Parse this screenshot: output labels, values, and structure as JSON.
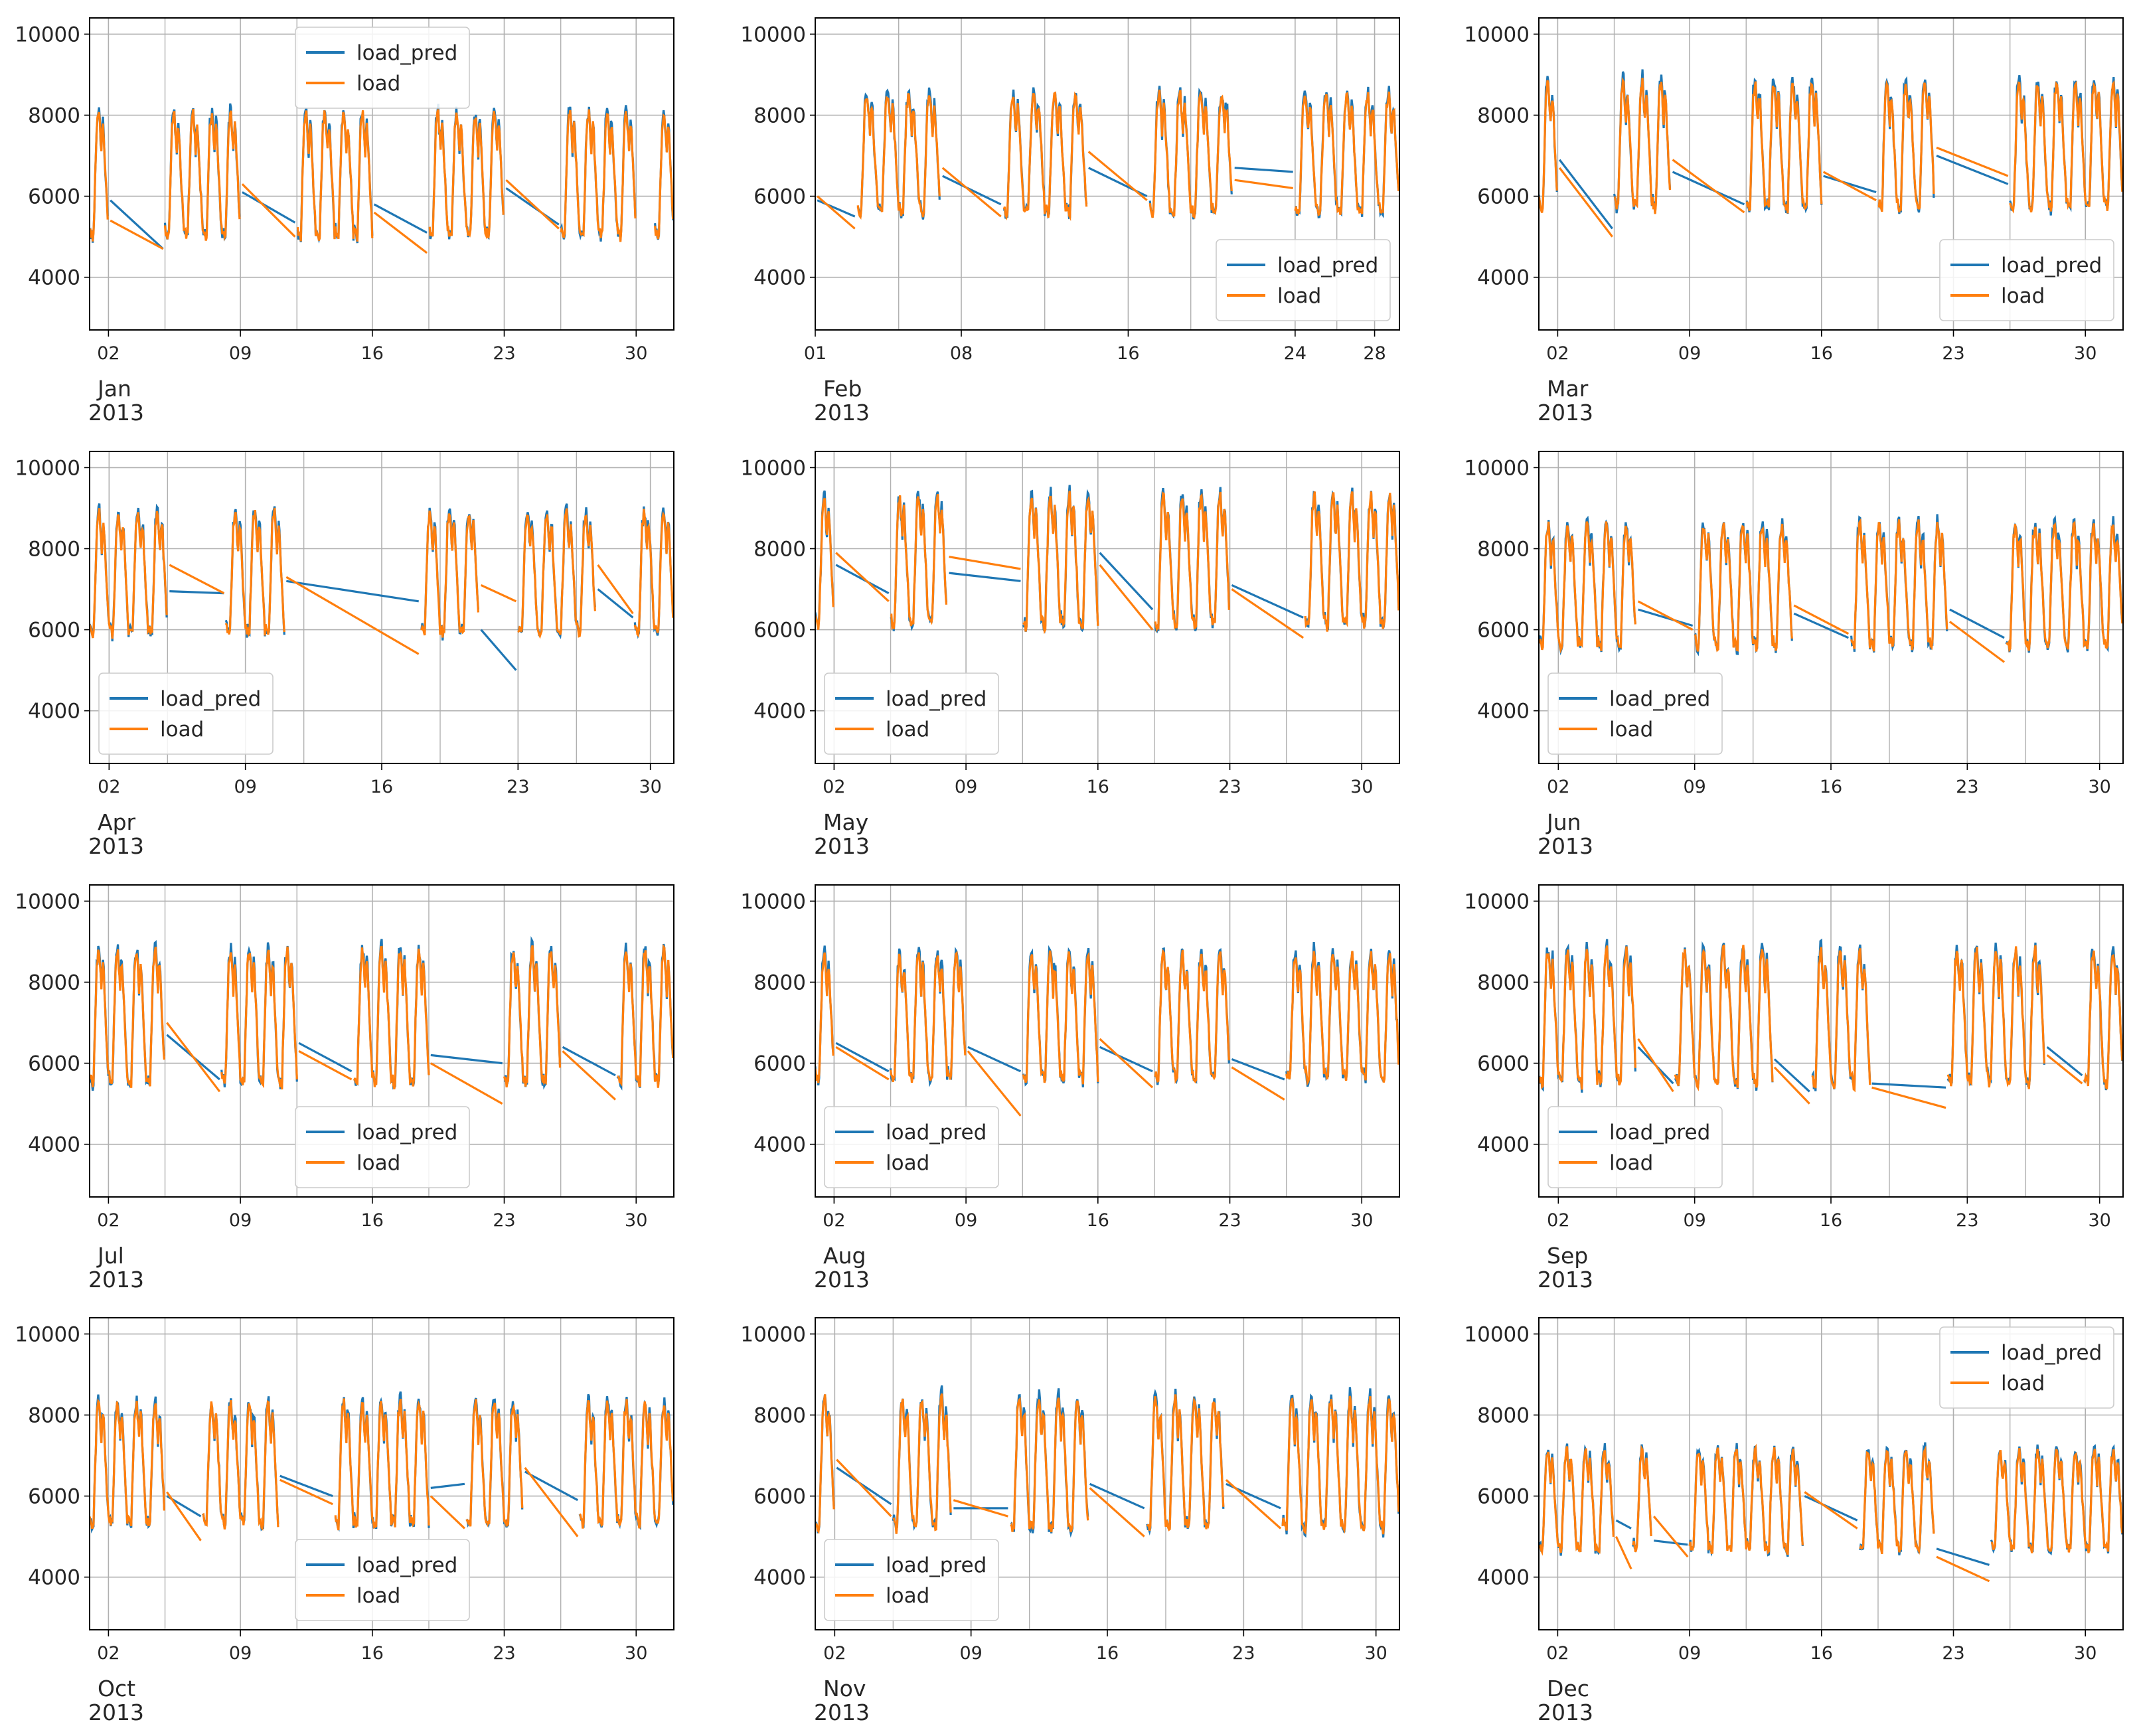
{
  "series_names": [
    "load_pred",
    "load"
  ],
  "colors": {
    "load_pred": "#1f77b4",
    "load": "#ff7f0e",
    "grid": "#b0b0b0",
    "axis": "#000000"
  },
  "chart_data": {
    "type": "line",
    "layout": "4x3 grid of subplots, shared y axis",
    "ylim": [
      2700,
      10400
    ],
    "yticks": [
      4000,
      6000,
      8000,
      10000
    ],
    "grid": true,
    "panels": [
      {
        "month": "Jan",
        "year": "2013",
        "days": 31,
        "day_ticks": [
          "02",
          "09",
          "16",
          "23",
          "30"
        ],
        "legend": "top-center",
        "gaps": [
          [
            2,
            5
          ],
          [
            9,
            12
          ],
          [
            16,
            19
          ],
          [
            23,
            26
          ],
          [
            30,
            31
          ]
        ],
        "peak": 8150,
        "trough": 4900,
        "load_pred_gap_path": [
          [
            2.1,
            5900
          ],
          [
            4.9,
            4700
          ],
          [
            9.1,
            6100
          ],
          [
            11.9,
            5350
          ],
          [
            16.1,
            5800
          ],
          [
            18.9,
            5100
          ],
          [
            23.1,
            6200
          ],
          [
            25.9,
            5300
          ]
        ],
        "load_gap_path": [
          [
            2.1,
            5400
          ],
          [
            4.9,
            4700
          ],
          [
            9.1,
            6300
          ],
          [
            11.9,
            5000
          ],
          [
            16.1,
            5600
          ],
          [
            18.9,
            4600
          ],
          [
            23.1,
            6400
          ],
          [
            25.9,
            5200
          ]
        ]
      },
      {
        "month": "Feb",
        "year": "2013",
        "days": 28,
        "day_ticks": [
          "01",
          "08",
          "16",
          "24",
          "28"
        ],
        "legend": "bottom-right",
        "gaps": [
          [
            1,
            3
          ],
          [
            7,
            10
          ],
          [
            14,
            17
          ],
          [
            21,
            24
          ]
        ],
        "peak": 8600,
        "trough": 5500,
        "load_pred_gap_path": [
          [
            1.1,
            5900
          ],
          [
            2.9,
            5500
          ],
          [
            7.1,
            6500
          ],
          [
            9.9,
            5800
          ],
          [
            14.1,
            6700
          ],
          [
            16.9,
            6000
          ],
          [
            21.1,
            6700
          ],
          [
            23.9,
            6600
          ]
        ],
        "load_gap_path": [
          [
            1.1,
            6000
          ],
          [
            2.9,
            5200
          ],
          [
            7.1,
            6700
          ],
          [
            9.9,
            5500
          ],
          [
            14.1,
            7100
          ],
          [
            16.9,
            5900
          ],
          [
            21.1,
            6400
          ],
          [
            23.9,
            6200
          ]
        ]
      },
      {
        "month": "Mar",
        "year": "2013",
        "days": 31,
        "day_ticks": [
          "02",
          "09",
          "16",
          "23",
          "30"
        ],
        "legend": "bottom-right",
        "gaps": [
          [
            2,
            5
          ],
          [
            8,
            12
          ],
          [
            16,
            19
          ],
          [
            22,
            26
          ]
        ],
        "peak": 8900,
        "trough": 5600,
        "load_pred_gap_path": [
          [
            2.1,
            6900
          ],
          [
            4.9,
            5200
          ],
          [
            8.1,
            6600
          ],
          [
            11.9,
            5800
          ],
          [
            16.1,
            6500
          ],
          [
            18.9,
            6100
          ],
          [
            22.1,
            7000
          ],
          [
            25.9,
            6300
          ]
        ],
        "load_gap_path": [
          [
            2.1,
            6700
          ],
          [
            4.9,
            5000
          ],
          [
            8.1,
            6900
          ],
          [
            11.9,
            5600
          ],
          [
            16.1,
            6600
          ],
          [
            18.9,
            5900
          ],
          [
            22.1,
            7200
          ],
          [
            25.9,
            6500
          ]
        ]
      },
      {
        "month": "Apr",
        "year": "2013",
        "days": 30,
        "day_ticks": [
          "02",
          "09",
          "16",
          "23",
          "30"
        ],
        "legend": "bottom-left",
        "gaps": [
          [
            5,
            8
          ],
          [
            11,
            18
          ],
          [
            21,
            23
          ],
          [
            27,
            29
          ]
        ],
        "peak": 9000,
        "trough": 5800,
        "load_pred_gap_path": [
          [
            5.1,
            6950
          ],
          [
            7.9,
            6900
          ],
          [
            11.1,
            7200
          ],
          [
            17.9,
            6700
          ],
          [
            21.1,
            6000
          ],
          [
            22.9,
            5000
          ],
          [
            27.1,
            7000
          ],
          [
            28.9,
            6300
          ]
        ],
        "load_gap_path": [
          [
            5.1,
            7600
          ],
          [
            7.9,
            6900
          ],
          [
            11.1,
            7300
          ],
          [
            17.9,
            5400
          ],
          [
            21.1,
            7100
          ],
          [
            22.9,
            6700
          ],
          [
            27.1,
            7600
          ],
          [
            28.9,
            6400
          ]
        ]
      },
      {
        "month": "May",
        "year": "2013",
        "days": 31,
        "day_ticks": [
          "02",
          "09",
          "16",
          "23",
          "30"
        ],
        "legend": "bottom-left",
        "gaps": [
          [
            2,
            5
          ],
          [
            8,
            12
          ],
          [
            16,
            19
          ],
          [
            23,
            27
          ]
        ],
        "peak": 9400,
        "trough": 6000,
        "load_pred_gap_path": [
          [
            2.1,
            7600
          ],
          [
            4.9,
            6900
          ],
          [
            8.1,
            7400
          ],
          [
            11.9,
            7200
          ],
          [
            16.1,
            7900
          ],
          [
            18.9,
            6500
          ],
          [
            23.1,
            7100
          ],
          [
            26.9,
            6300
          ]
        ],
        "load_gap_path": [
          [
            2.1,
            7900
          ],
          [
            4.9,
            6700
          ],
          [
            8.1,
            7800
          ],
          [
            11.9,
            7500
          ],
          [
            16.1,
            7600
          ],
          [
            18.9,
            6000
          ],
          [
            23.1,
            7000
          ],
          [
            26.9,
            5800
          ]
        ]
      },
      {
        "month": "Jun",
        "year": "2013",
        "days": 30,
        "day_ticks": [
          "02",
          "09",
          "16",
          "23",
          "30"
        ],
        "legend": "bottom-left",
        "gaps": [
          [
            6,
            9
          ],
          [
            14,
            17
          ],
          [
            22,
            25
          ]
        ],
        "peak": 8700,
        "trough": 5500,
        "load_pred_gap_path": [
          [
            6.1,
            6500
          ],
          [
            8.9,
            6100
          ],
          [
            14.1,
            6400
          ],
          [
            16.9,
            5800
          ],
          [
            22.1,
            6500
          ],
          [
            24.9,
            5800
          ]
        ],
        "load_gap_path": [
          [
            6.1,
            6700
          ],
          [
            8.9,
            6000
          ],
          [
            14.1,
            6600
          ],
          [
            16.9,
            5900
          ],
          [
            22.1,
            6200
          ],
          [
            24.9,
            5200
          ]
        ]
      },
      {
        "month": "Jul",
        "year": "2013",
        "days": 31,
        "day_ticks": [
          "02",
          "09",
          "16",
          "23",
          "30"
        ],
        "legend": "bottom-center",
        "gaps": [
          [
            5,
            8
          ],
          [
            12,
            15
          ],
          [
            19,
            23
          ],
          [
            26,
            29
          ]
        ],
        "peak": 8900,
        "trough": 5400,
        "load_pred_gap_path": [
          [
            5.1,
            6700
          ],
          [
            7.9,
            5600
          ],
          [
            12.1,
            6500
          ],
          [
            14.9,
            5800
          ],
          [
            19.1,
            6200
          ],
          [
            22.9,
            6000
          ],
          [
            26.1,
            6400
          ],
          [
            28.9,
            5700
          ]
        ],
        "load_gap_path": [
          [
            5.1,
            7000
          ],
          [
            7.9,
            5300
          ],
          [
            12.1,
            6300
          ],
          [
            14.9,
            5600
          ],
          [
            19.1,
            6000
          ],
          [
            22.9,
            5000
          ],
          [
            26.1,
            6300
          ],
          [
            28.9,
            5100
          ]
        ]
      },
      {
        "month": "Aug",
        "year": "2013",
        "days": 31,
        "day_ticks": [
          "02",
          "09",
          "16",
          "23",
          "30"
        ],
        "legend": "bottom-left",
        "gaps": [
          [
            2,
            5
          ],
          [
            9,
            12
          ],
          [
            16,
            19
          ],
          [
            23,
            26
          ]
        ],
        "peak": 8800,
        "trough": 5500,
        "load_pred_gap_path": [
          [
            2.1,
            6500
          ],
          [
            4.9,
            5800
          ],
          [
            9.1,
            6400
          ],
          [
            11.9,
            5800
          ],
          [
            16.1,
            6400
          ],
          [
            18.9,
            5800
          ],
          [
            23.1,
            6100
          ],
          [
            25.9,
            5600
          ]
        ],
        "load_gap_path": [
          [
            2.1,
            6400
          ],
          [
            4.9,
            5600
          ],
          [
            9.1,
            6300
          ],
          [
            11.9,
            4700
          ],
          [
            16.1,
            6600
          ],
          [
            18.9,
            5400
          ],
          [
            23.1,
            5900
          ],
          [
            25.9,
            5100
          ]
        ]
      },
      {
        "month": "Sep",
        "year": "2013",
        "days": 30,
        "day_ticks": [
          "02",
          "09",
          "16",
          "23",
          "30"
        ],
        "legend": "bottom-left",
        "gaps": [
          [
            6,
            8
          ],
          [
            13,
            15
          ],
          [
            18,
            22
          ],
          [
            27,
            29
          ]
        ],
        "peak": 8900,
        "trough": 5400,
        "load_pred_gap_path": [
          [
            6.1,
            6400
          ],
          [
            7.9,
            5500
          ],
          [
            13.1,
            6100
          ],
          [
            14.9,
            5300
          ],
          [
            18.1,
            5500
          ],
          [
            21.9,
            5400
          ],
          [
            27.1,
            6400
          ],
          [
            28.9,
            5700
          ]
        ],
        "load_gap_path": [
          [
            6.1,
            6600
          ],
          [
            7.9,
            5300
          ],
          [
            13.1,
            5900
          ],
          [
            14.9,
            5000
          ],
          [
            18.1,
            5400
          ],
          [
            21.9,
            4900
          ],
          [
            27.1,
            6200
          ],
          [
            28.9,
            5500
          ]
        ]
      },
      {
        "month": "Oct",
        "year": "2013",
        "days": 31,
        "day_ticks": [
          "02",
          "09",
          "16",
          "23",
          "30"
        ],
        "legend": "bottom-center",
        "gaps": [
          [
            5,
            7
          ],
          [
            11,
            14
          ],
          [
            19,
            21
          ],
          [
            24,
            27
          ]
        ],
        "peak": 8400,
        "trough": 5200,
        "load_pred_gap_path": [
          [
            5.1,
            6000
          ],
          [
            6.9,
            5500
          ],
          [
            11.1,
            6500
          ],
          [
            13.9,
            6000
          ],
          [
            19.1,
            6200
          ],
          [
            20.9,
            6300
          ],
          [
            24.1,
            6600
          ],
          [
            26.9,
            5900
          ]
        ],
        "load_gap_path": [
          [
            5.1,
            6100
          ],
          [
            6.9,
            4900
          ],
          [
            11.1,
            6400
          ],
          [
            13.9,
            5800
          ],
          [
            19.1,
            6000
          ],
          [
            20.9,
            5200
          ],
          [
            24.1,
            6700
          ],
          [
            26.9,
            5000
          ]
        ]
      },
      {
        "month": "Nov",
        "year": "2013",
        "days": 30,
        "day_ticks": [
          "02",
          "09",
          "16",
          "23",
          "30"
        ],
        "legend": "bottom-left",
        "gaps": [
          [
            2,
            5
          ],
          [
            8,
            11
          ],
          [
            15,
            18
          ],
          [
            22,
            25
          ]
        ],
        "peak": 8500,
        "trough": 5100,
        "load_pred_gap_path": [
          [
            2.1,
            6700
          ],
          [
            4.9,
            5800
          ],
          [
            8.1,
            5700
          ],
          [
            10.9,
            5700
          ],
          [
            15.1,
            6300
          ],
          [
            17.9,
            5700
          ],
          [
            22.1,
            6300
          ],
          [
            24.9,
            5700
          ]
        ],
        "load_gap_path": [
          [
            2.1,
            6900
          ],
          [
            4.9,
            5500
          ],
          [
            8.1,
            5900
          ],
          [
            10.9,
            5500
          ],
          [
            15.1,
            6200
          ],
          [
            17.9,
            5000
          ],
          [
            22.1,
            6400
          ],
          [
            24.9,
            5200
          ]
        ]
      },
      {
        "month": "Dec",
        "year": "2013",
        "days": 31,
        "day_ticks": [
          "02",
          "09",
          "16",
          "23",
          "30"
        ],
        "legend": "top-right",
        "gaps": [
          [
            5,
            6
          ],
          [
            7,
            9
          ],
          [
            15,
            18
          ],
          [
            22,
            25
          ]
        ],
        "peak": 7200,
        "trough": 4600,
        "load_pred_gap_path": [
          [
            5.1,
            5400
          ],
          [
            5.9,
            5200
          ],
          [
            7.1,
            4900
          ],
          [
            8.9,
            4800
          ],
          [
            15.1,
            6000
          ],
          [
            17.9,
            5400
          ],
          [
            22.1,
            4700
          ],
          [
            24.9,
            4300
          ]
        ],
        "load_gap_path": [
          [
            5.1,
            5000
          ],
          [
            5.9,
            4200
          ],
          [
            7.1,
            5500
          ],
          [
            8.9,
            4500
          ],
          [
            15.1,
            6100
          ],
          [
            17.9,
            5200
          ],
          [
            22.1,
            4500
          ],
          [
            24.9,
            3900
          ]
        ]
      }
    ]
  }
}
